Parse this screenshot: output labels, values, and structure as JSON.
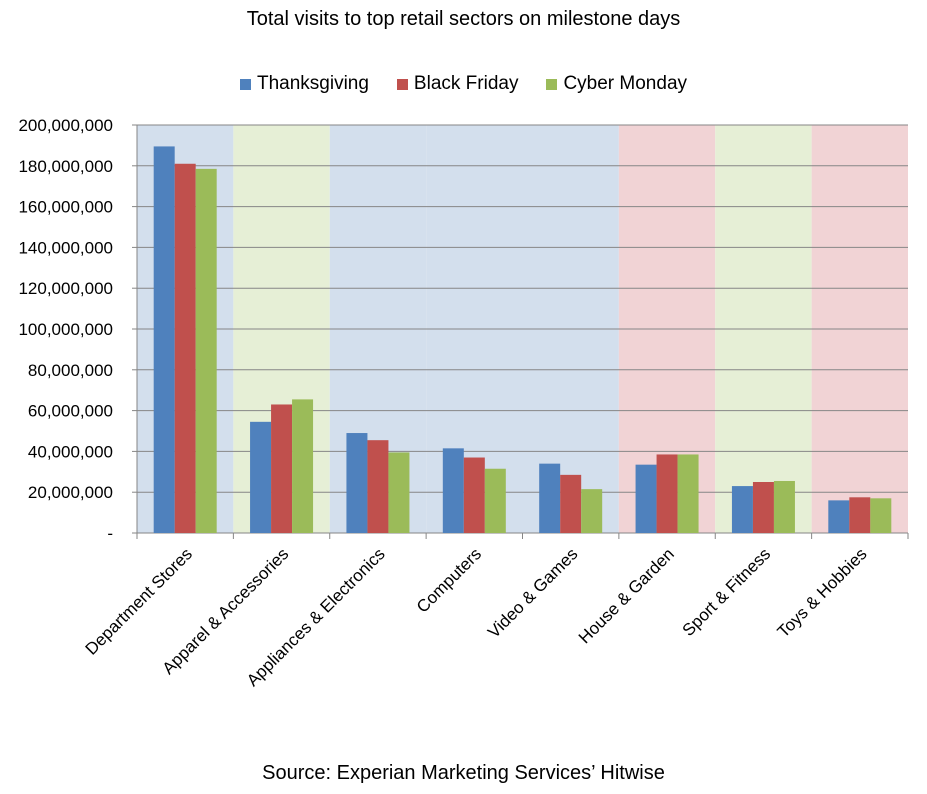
{
  "chart_data": {
    "type": "bar",
    "title": "Total visits to top retail sectors on milestone days",
    "categories": [
      "Department Stores",
      "Apparel & Accessories",
      "Appliances & Electronics",
      "Computers",
      "Video & Games",
      "House & Garden",
      "Sport & Fitness",
      "Toys & Hobbies"
    ],
    "series": [
      {
        "name": "Thanksgiving",
        "color": "#4f81bd",
        "values": [
          189500000,
          54500000,
          49000000,
          41500000,
          34000000,
          33500000,
          23000000,
          16000000
        ]
      },
      {
        "name": "Black Friday",
        "color": "#c0504d",
        "values": [
          181000000,
          63000000,
          45500000,
          37000000,
          28500000,
          38500000,
          25000000,
          17500000
        ]
      },
      {
        "name": "Cyber Monday",
        "color": "#9bbb59",
        "values": [
          178500000,
          65500000,
          39500000,
          31500000,
          21500000,
          38500000,
          25500000,
          17000000
        ]
      }
    ],
    "ylim": [
      0,
      200000000
    ],
    "yticks": [
      0,
      20000000,
      40000000,
      60000000,
      80000000,
      100000000,
      120000000,
      140000000,
      160000000,
      180000000,
      200000000
    ],
    "ytick_labels": [
      "-",
      "20,000,000",
      "40,000,000",
      "60,000,000",
      "80,000,000",
      "100,000,000",
      "120,000,000",
      "140,000,000",
      "160,000,000",
      "180,000,000",
      "200,000,000"
    ],
    "band_colors": [
      "#d3dfed",
      "#e6efd6",
      "#d3dfed",
      "#d3dfed",
      "#d3dfed",
      "#f1d3d5",
      "#e6efd6",
      "#f1d3d5"
    ],
    "legend_position": "top",
    "grid": true,
    "source": "Source: Experian Marketing Services’ Hitwise"
  }
}
